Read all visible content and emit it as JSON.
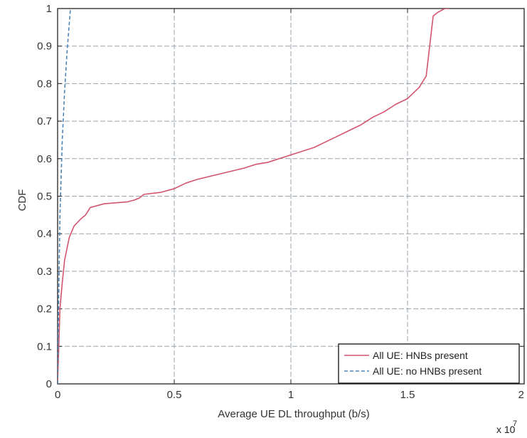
{
  "chart_data": {
    "type": "line",
    "title": "",
    "xlabel": "Average UE DL throughput (b/s)",
    "ylabel": "CDF",
    "x_multiplier_label": "x 10",
    "x_multiplier_exp": "7",
    "xlim": [
      0,
      2
    ],
    "ylim": [
      0,
      1
    ],
    "xticks": [
      0,
      0.5,
      1,
      1.5,
      2
    ],
    "xtick_labels": [
      "0",
      "0.5",
      "1",
      "1.5",
      "2"
    ],
    "yticks": [
      0,
      0.1,
      0.2,
      0.3,
      0.4,
      0.5,
      0.6,
      0.7,
      0.8,
      0.9,
      1
    ],
    "ytick_labels": [
      "0",
      "0.1",
      "0.2",
      "0.3",
      "0.4",
      "0.5",
      "0.6",
      "0.7",
      "0.8",
      "0.9",
      "1"
    ],
    "grid": true,
    "legend_position": "bottom-right",
    "series": [
      {
        "name": "All UE: HNBs present",
        "color": "#d2546e",
        "dash": "solid",
        "x": [
          0,
          0.005,
          0.01,
          0.02,
          0.03,
          0.05,
          0.07,
          0.1,
          0.12,
          0.14,
          0.2,
          0.3,
          0.33,
          0.35,
          0.37,
          0.44,
          0.5,
          0.55,
          0.6,
          0.7,
          0.8,
          0.85,
          0.9,
          1.0,
          1.1,
          1.15,
          1.2,
          1.25,
          1.3,
          1.35,
          1.4,
          1.45,
          1.5,
          1.55,
          1.58,
          1.61,
          1.63,
          1.66,
          1.68
        ],
        "y": [
          0,
          0.1,
          0.2,
          0.27,
          0.33,
          0.39,
          0.42,
          0.44,
          0.45,
          0.47,
          0.48,
          0.485,
          0.49,
          0.495,
          0.505,
          0.51,
          0.52,
          0.535,
          0.545,
          0.56,
          0.575,
          0.585,
          0.59,
          0.61,
          0.63,
          0.645,
          0.66,
          0.675,
          0.69,
          0.71,
          0.725,
          0.745,
          0.76,
          0.79,
          0.82,
          0.98,
          0.99,
          1.0,
          1.0
        ]
      },
      {
        "name": "All UE: no HNBs present",
        "color": "#4f86b8",
        "dash": "dashed",
        "x": [
          0,
          0.005,
          0.01,
          0.02,
          0.03,
          0.04,
          0.05,
          0.055
        ],
        "y": [
          0,
          0.25,
          0.45,
          0.65,
          0.78,
          0.88,
          0.96,
          1.0
        ]
      }
    ]
  }
}
